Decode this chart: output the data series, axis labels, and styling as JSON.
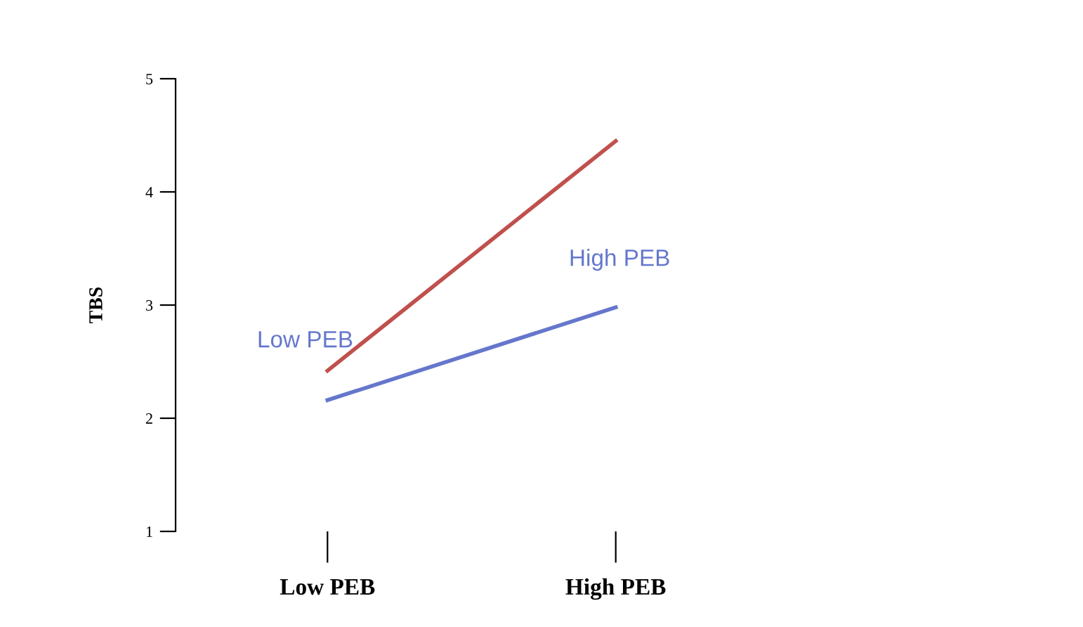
{
  "chart_data": {
    "type": "line",
    "ylabel": "TBS",
    "categories": [
      "Low PEB",
      "High PEB"
    ],
    "series": [
      {
        "color": "#c0504d",
        "values": [
          2.42,
          4.45
        ]
      },
      {
        "color": "#6577cc",
        "values": [
          2.16,
          2.98
        ]
      }
    ],
    "ylim": [
      1,
      5
    ],
    "yticks": [
      1,
      2,
      3,
      4,
      5
    ],
    "grid": false,
    "legend": false,
    "marker": "none",
    "line_style": "solid",
    "annotations": [
      "Low PEB",
      "High PEB"
    ]
  }
}
